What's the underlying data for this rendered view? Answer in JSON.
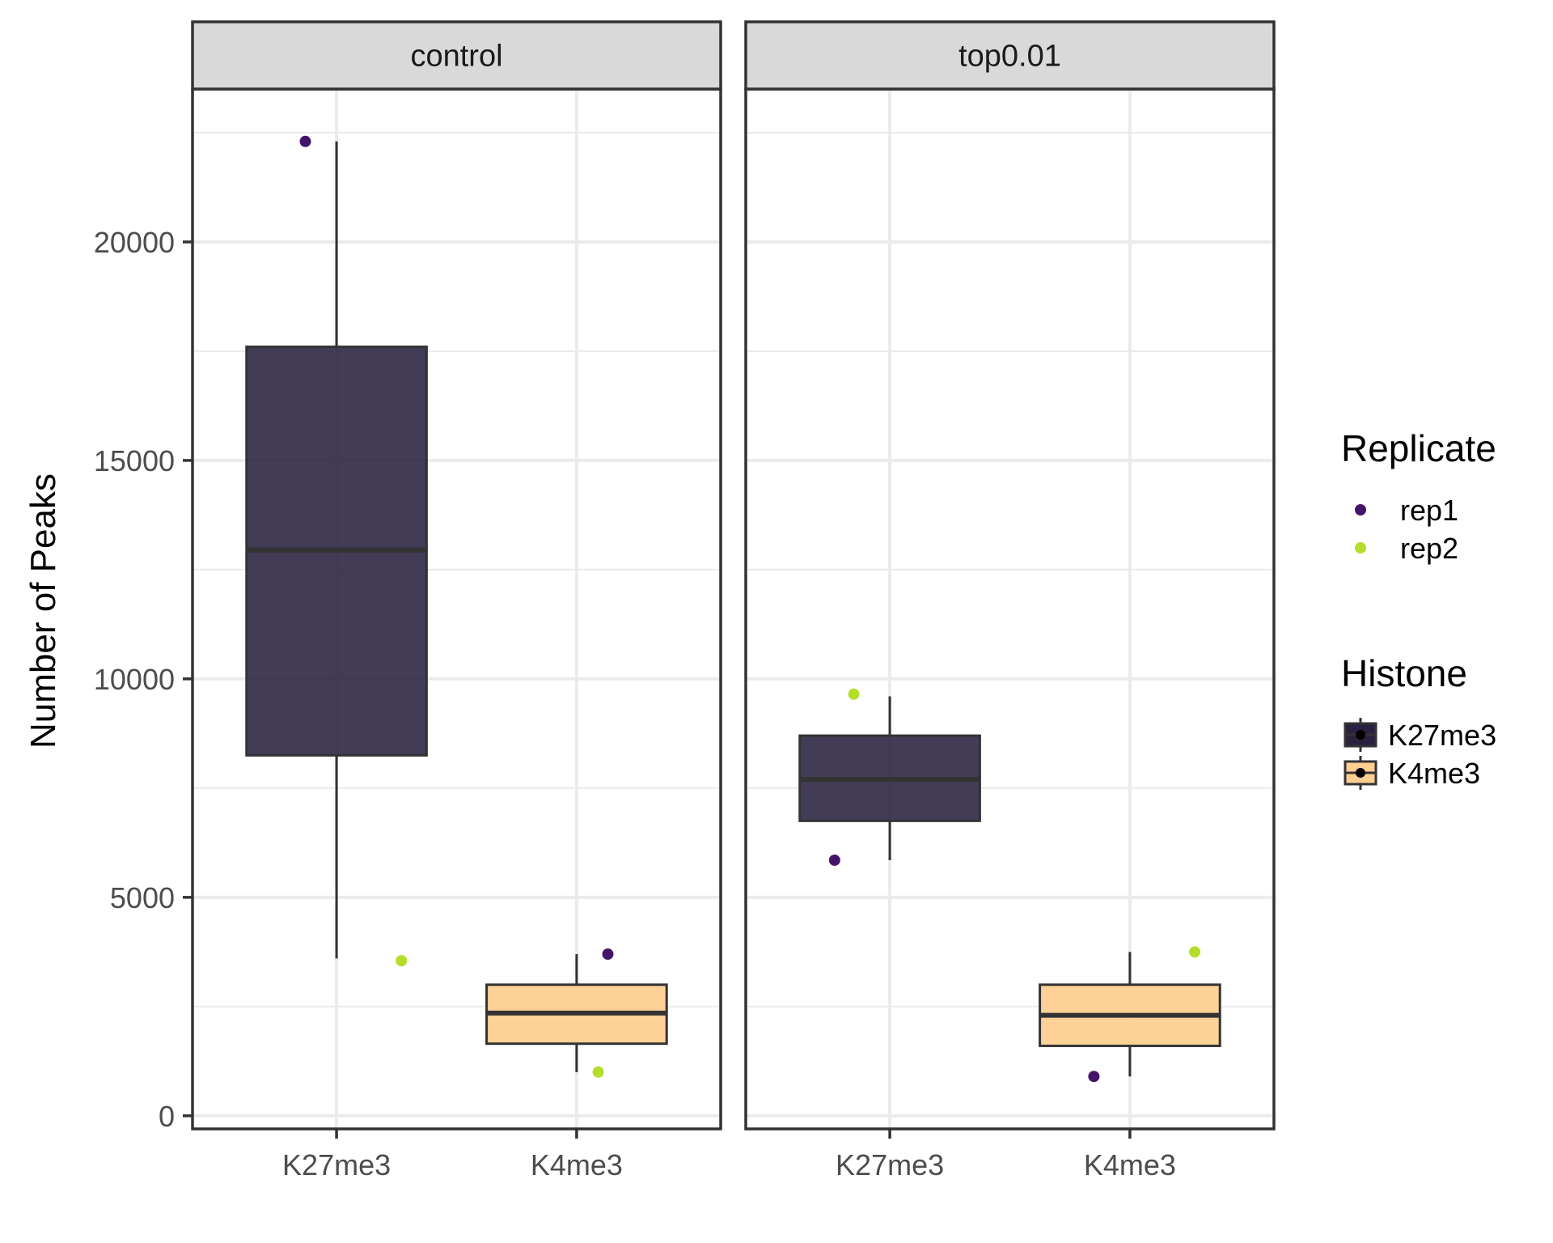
{
  "chart_data": {
    "type": "boxplot",
    "ylabel": "Number of Peaks",
    "xlabel": "",
    "ylim": [
      -300,
      23500
    ],
    "y_ticks": [
      0,
      5000,
      10000,
      15000,
      20000
    ],
    "y_tick_labels": [
      "0",
      "5000",
      "10000",
      "15000",
      "20000"
    ],
    "categories": [
      "K27me3",
      "K4me3"
    ],
    "grid": true,
    "legend_position": "right",
    "facets": [
      {
        "label": "control",
        "boxes": [
          {
            "category": "K27me3",
            "fill_key": "K27me3",
            "min": 3600,
            "q1": 8250,
            "median": 12950,
            "q3": 17600,
            "max": 22300
          },
          {
            "category": "K4me3",
            "fill_key": "K4me3",
            "min": 1000,
            "q1": 1650,
            "median": 2350,
            "q3": 3000,
            "max": 3700
          }
        ],
        "points": [
          {
            "category": "K27me3",
            "replicate": "rep1",
            "y": 22300,
            "jitter": -0.13
          },
          {
            "category": "K27me3",
            "replicate": "rep2",
            "y": 3550,
            "jitter": 0.27
          },
          {
            "category": "K4me3",
            "replicate": "rep1",
            "y": 3700,
            "jitter": 0.13
          },
          {
            "category": "K4me3",
            "replicate": "rep2",
            "y": 1000,
            "jitter": 0.09
          }
        ]
      },
      {
        "label": "top0.01",
        "boxes": [
          {
            "category": "K27me3",
            "fill_key": "K27me3",
            "min": 5850,
            "q1": 6750,
            "median": 7700,
            "q3": 8700,
            "max": 9600
          },
          {
            "category": "K4me3",
            "fill_key": "K4me3",
            "min": 900,
            "q1": 1600,
            "median": 2300,
            "q3": 3000,
            "max": 3750
          }
        ],
        "points": [
          {
            "category": "K27me3",
            "replicate": "rep1",
            "y": 5850,
            "jitter": -0.23
          },
          {
            "category": "K27me3",
            "replicate": "rep2",
            "y": 9650,
            "jitter": -0.15
          },
          {
            "category": "K4me3",
            "replicate": "rep1",
            "y": 900,
            "jitter": -0.15
          },
          {
            "category": "K4me3",
            "replicate": "rep2",
            "y": 3750,
            "jitter": 0.27
          }
        ]
      }
    ],
    "legends": {
      "replicate": {
        "title": "Replicate",
        "items": [
          {
            "label": "rep1",
            "color": "#44146a"
          },
          {
            "label": "rep2",
            "color": "#b5de2b"
          }
        ]
      },
      "histone": {
        "title": "Histone",
        "items": [
          {
            "label": "K27me3",
            "color": "#29213f"
          },
          {
            "label": "K4me3",
            "color": "#fecf91"
          }
        ]
      }
    },
    "colors": {
      "panel_border": "#333333",
      "strip_fill": "#d9d9d9",
      "grid": "#ebebeb",
      "box_outline": "#333333"
    }
  }
}
